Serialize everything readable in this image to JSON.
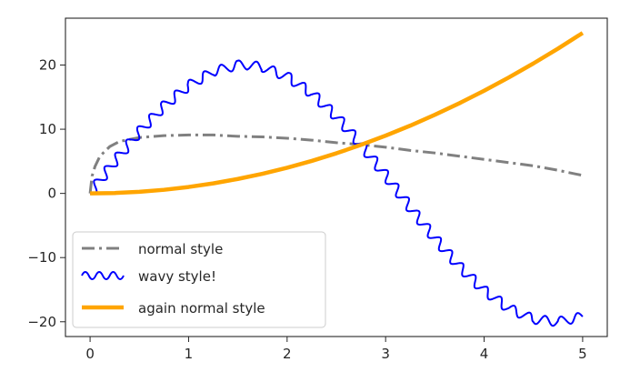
{
  "chart_data": {
    "type": "line",
    "title": "",
    "xlabel": "",
    "ylabel": "",
    "xlim": [
      -0.25,
      5.25
    ],
    "ylim": [
      -22.3,
      27.3
    ],
    "xticks": [
      0,
      1,
      2,
      3,
      4,
      5
    ],
    "yticks": [
      -20,
      -10,
      0,
      10,
      20
    ],
    "xtick_labels": [
      "0",
      "1",
      "2",
      "3",
      "4",
      "5"
    ],
    "ytick_labels": [
      "−20",
      "−10",
      "0",
      "10",
      "20"
    ],
    "grid": false,
    "legend_position": "lower-left",
    "series": [
      {
        "name": "normal style",
        "style": "dash-dot",
        "color": "#808080",
        "x": [
          0,
          0.02,
          0.05,
          0.1,
          0.2,
          0.3,
          0.5,
          0.75,
          1.0,
          1.25,
          1.5,
          1.75,
          2.0,
          2.25,
          2.5,
          2.75,
          3.0,
          3.25,
          3.5,
          3.75,
          4.0,
          4.25,
          4.5,
          4.75,
          5.0
        ],
        "y": [
          0,
          2.7,
          4.2,
          5.8,
          7.3,
          8.1,
          8.7,
          9.0,
          9.1,
          9.1,
          8.9,
          8.8,
          8.6,
          8.3,
          7.9,
          7.6,
          7.2,
          6.7,
          6.3,
          5.8,
          5.3,
          4.8,
          4.3,
          3.6,
          2.8
        ]
      },
      {
        "name": "wavy style!",
        "style": "wavy",
        "color": "#0000ff",
        "x": [
          0,
          0.25,
          0.5,
          0.75,
          1.0,
          1.25,
          1.5,
          1.6,
          1.75,
          2.0,
          2.25,
          2.5,
          2.75,
          3.0,
          3.25,
          3.5,
          3.75,
          4.0,
          4.25,
          4.5,
          4.75,
          5.0
        ],
        "y": [
          0,
          5.0,
          9.6,
          13.6,
          16.8,
          19.0,
          20.0,
          20.0,
          19.7,
          18.2,
          15.6,
          12.0,
          7.6,
          2.8,
          -2.2,
          -7.0,
          -11.4,
          -15.1,
          -17.9,
          -19.6,
          -20.0,
          -19.2
        ]
      },
      {
        "name": "again normal style",
        "style": "solid",
        "color": "#ffa500",
        "x": [
          0,
          0.25,
          0.5,
          0.75,
          1.0,
          1.25,
          1.5,
          1.75,
          2.0,
          2.25,
          2.5,
          2.75,
          3.0,
          3.25,
          3.5,
          3.75,
          4.0,
          4.25,
          4.5,
          4.75,
          5.0
        ],
        "y": [
          0,
          0.06,
          0.25,
          0.56,
          1.0,
          1.56,
          2.25,
          3.06,
          4.0,
          5.06,
          6.25,
          7.56,
          9.0,
          10.56,
          12.25,
          14.06,
          16.0,
          18.06,
          20.25,
          22.56,
          25.0
        ]
      }
    ]
  }
}
